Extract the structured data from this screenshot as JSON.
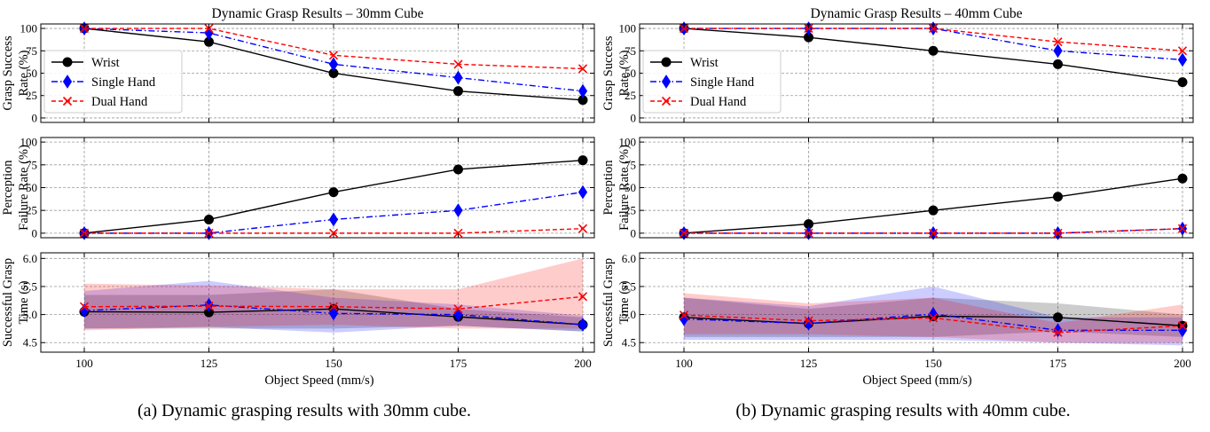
{
  "captions": [
    "(a) Dynamic grasping results with 30mm cube.",
    "(b) Dynamic grasping results with 40mm cube."
  ],
  "colors": {
    "wrist": "#000000",
    "single": "#0000ff",
    "dual": "#ff0000",
    "grid": "#9a9a9a"
  },
  "chart_data": [
    {
      "type": "line",
      "title": "Dynamic Grasp Results – 30mm Cube",
      "xlabel": "Object Speed (mm/s)",
      "x": [
        100,
        125,
        150,
        175,
        200
      ],
      "legend": {
        "placement": "lower-left",
        "entries": [
          "Wrist",
          "Single Hand",
          "Dual Hand"
        ]
      },
      "subplots": [
        {
          "ylabel": [
            "Grasp Success",
            "Rate (%)"
          ],
          "ylim": [
            -5,
            105
          ],
          "yticks": [
            "0",
            "25",
            "50",
            "75",
            "100"
          ],
          "series": [
            {
              "name": "Wrist",
              "values": [
                100,
                85,
                50,
                30,
                20
              ]
            },
            {
              "name": "Single Hand",
              "values": [
                100,
                95,
                60,
                45,
                30
              ]
            },
            {
              "name": "Dual Hand",
              "values": [
                100,
                100,
                70,
                60,
                55
              ]
            }
          ]
        },
        {
          "ylabel": [
            "Perception",
            "Failure Rate (%)"
          ],
          "ylim": [
            -5,
            105
          ],
          "yticks": [
            "0",
            "25",
            "50",
            "75",
            "100"
          ],
          "series": [
            {
              "name": "Wrist",
              "values": [
                0,
                15,
                45,
                70,
                80
              ]
            },
            {
              "name": "Single Hand",
              "values": [
                0,
                0,
                15,
                25,
                45
              ]
            },
            {
              "name": "Dual Hand",
              "values": [
                0,
                0,
                0,
                0,
                5
              ]
            }
          ]
        },
        {
          "ylabel": [
            "Successful Grasp",
            "Time (s)"
          ],
          "ylim": [
            4.33,
            6.1
          ],
          "yticks": [
            "4.5",
            "5.0",
            "5.5",
            "6.0"
          ],
          "series": [
            {
              "name": "Wrist",
              "values": [
                5.05,
                5.04,
                5.1,
                4.96,
                4.82
              ],
              "lower": [
                4.75,
                4.75,
                4.75,
                4.8,
                4.7
              ],
              "upper": [
                5.35,
                5.35,
                5.45,
                5.1,
                4.95
              ]
            },
            {
              "name": "Single Hand",
              "values": [
                5.07,
                5.17,
                5.02,
                5.0,
                4.82
              ],
              "lower": [
                4.75,
                4.78,
                4.68,
                4.8,
                4.7
              ],
              "upper": [
                5.42,
                5.6,
                5.3,
                5.18,
                4.98
              ]
            },
            {
              "name": "Dual Hand",
              "values": [
                5.14,
                5.15,
                5.14,
                5.1,
                5.32
              ],
              "lower": [
                4.72,
                4.78,
                4.82,
                4.75,
                4.75
              ],
              "upper": [
                5.55,
                5.52,
                5.45,
                5.45,
                6.0
              ]
            }
          ]
        }
      ]
    },
    {
      "type": "line",
      "title": "Dynamic Grasp Results – 40mm Cube",
      "xlabel": "Object Speed (mm/s)",
      "x": [
        100,
        125,
        150,
        175,
        200
      ],
      "legend": {
        "placement": "lower-left",
        "entries": [
          "Wrist",
          "Single Hand",
          "Dual Hand"
        ]
      },
      "subplots": [
        {
          "ylabel": [
            "Grasp Success",
            "Rate (%)"
          ],
          "ylim": [
            -5,
            105
          ],
          "yticks": [
            "0",
            "25",
            "50",
            "75",
            "100"
          ],
          "series": [
            {
              "name": "Wrist",
              "values": [
                100,
                90,
                75,
                60,
                40
              ]
            },
            {
              "name": "Single Hand",
              "values": [
                100,
                100,
                100,
                75,
                65
              ]
            },
            {
              "name": "Dual Hand",
              "values": [
                100,
                100,
                100,
                85,
                75
              ]
            }
          ]
        },
        {
          "ylabel": [
            "Perception",
            "Failure Rate (%)"
          ],
          "ylim": [
            -5,
            105
          ],
          "yticks": [
            "0",
            "25",
            "50",
            "75",
            "100"
          ],
          "series": [
            {
              "name": "Wrist",
              "values": [
                0,
                10,
                25,
                40,
                60
              ]
            },
            {
              "name": "Single Hand",
              "values": [
                0,
                0,
                0,
                0,
                5
              ]
            },
            {
              "name": "Dual Hand",
              "values": [
                0,
                0,
                0,
                0,
                5
              ]
            }
          ]
        },
        {
          "ylabel": [
            "Successful Grasp",
            "Time (s)"
          ],
          "ylim": [
            4.33,
            6.1
          ],
          "yticks": [
            "4.5",
            "5.0",
            "5.5",
            "6.0"
          ],
          "series": [
            {
              "name": "Wrist",
              "values": [
                4.95,
                4.84,
                4.97,
                4.95,
                4.8
              ],
              "lower": [
                4.6,
                4.6,
                4.6,
                4.7,
                4.6
              ],
              "upper": [
                5.3,
                5.1,
                5.3,
                5.2,
                5.0
              ]
            },
            {
              "name": "Single Hand",
              "values": [
                4.92,
                4.84,
                5.01,
                4.72,
                4.72
              ],
              "lower": [
                4.55,
                4.55,
                4.55,
                4.5,
                4.45
              ],
              "upper": [
                5.3,
                5.15,
                5.5,
                4.95,
                4.95
              ]
            },
            {
              "name": "Dual Hand",
              "values": [
                4.99,
                4.89,
                4.94,
                4.68,
                4.8
              ],
              "lower": [
                4.65,
                4.65,
                4.6,
                4.5,
                4.5
              ],
              "upper": [
                5.38,
                5.2,
                5.3,
                4.85,
                5.18
              ]
            }
          ]
        }
      ]
    }
  ]
}
